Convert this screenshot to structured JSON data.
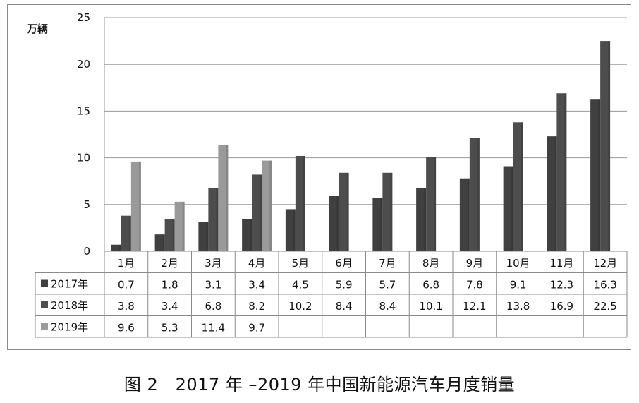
{
  "caption": {
    "figure_no": "图 2",
    "title": "2017 年 –2019 年中国新能源汽车月度销量"
  },
  "chart_data": {
    "type": "bar",
    "ylabel": "万辆",
    "ylim": [
      0,
      25
    ],
    "yticks": [
      0,
      5,
      10,
      15,
      20,
      25
    ],
    "grid": true,
    "legend_placement": "data-table-left",
    "categories": [
      "1月",
      "2月",
      "3月",
      "4月",
      "5月",
      "6月",
      "7月",
      "8月",
      "9月",
      "10月",
      "11月",
      "12月"
    ],
    "series": [
      {
        "name": "2017年",
        "color": "#404040",
        "values": [
          0.7,
          1.8,
          3.1,
          3.4,
          4.5,
          5.9,
          5.7,
          6.8,
          7.8,
          9.1,
          12.3,
          16.3
        ],
        "labels": [
          "0.7",
          "1.8",
          "3.1",
          "3.4",
          "4.5",
          "5.9",
          "5.7",
          "6.8",
          "7.8",
          "9.1",
          "12.3",
          "16.3"
        ]
      },
      {
        "name": "2018年",
        "color": "#4d4d4d",
        "values": [
          3.8,
          3.4,
          6.8,
          8.2,
          10.2,
          8.4,
          8.4,
          10.1,
          12.1,
          13.8,
          16.9,
          22.5
        ],
        "labels": [
          "3.8",
          "3.4",
          "6.8",
          "8.2",
          "10.2",
          "8.4",
          "8.4",
          "10.1",
          "12.1",
          "13.8",
          "16.9",
          "22.5"
        ]
      },
      {
        "name": "2019年",
        "color": "#9a9a9a",
        "values": [
          9.6,
          5.3,
          11.4,
          9.7,
          null,
          null,
          null,
          null,
          null,
          null,
          null,
          null
        ],
        "labels": [
          "9.6",
          "5.3",
          "11.4",
          "9.7",
          "",
          "",
          "",
          "",
          "",
          "",
          "",
          ""
        ]
      }
    ]
  }
}
